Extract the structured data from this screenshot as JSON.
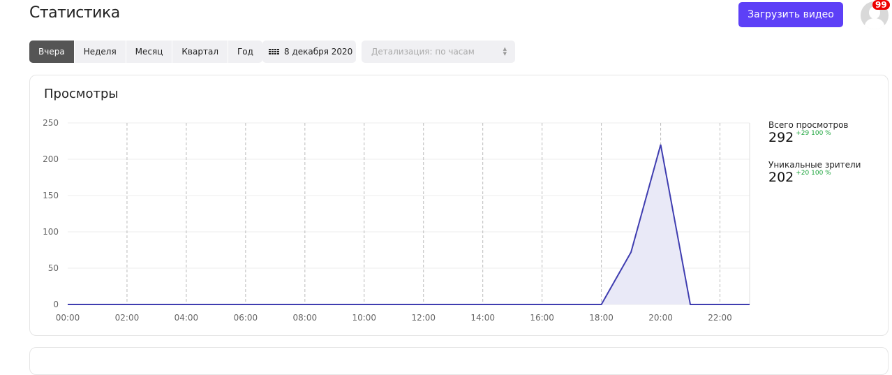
{
  "header": {
    "title": "Статистика",
    "upload_label": "Загрузить видео",
    "notifications": "99"
  },
  "periods": [
    {
      "label": "Вчера",
      "active": true
    },
    {
      "label": "Неделя"
    },
    {
      "label": "Месяц"
    },
    {
      "label": "Квартал"
    },
    {
      "label": "Год"
    }
  ],
  "date": "8 декабря 2020",
  "detail_placeholder": "Детализация: по часам",
  "views": {
    "title": "Просмотры",
    "stats": [
      {
        "label": "Всего просмотров",
        "value": "292",
        "delta": "+29 100 %"
      },
      {
        "label": "Уникальные зрители",
        "value": "202",
        "delta": "+20 100 %"
      }
    ]
  },
  "chart_data": {
    "type": "area",
    "x": [
      "00:00",
      "01:00",
      "02:00",
      "03:00",
      "04:00",
      "05:00",
      "06:00",
      "07:00",
      "08:00",
      "09:00",
      "10:00",
      "11:00",
      "12:00",
      "13:00",
      "14:00",
      "15:00",
      "16:00",
      "17:00",
      "18:00",
      "19:00",
      "20:00",
      "21:00",
      "22:00",
      "23:00"
    ],
    "values": [
      0,
      0,
      0,
      0,
      0,
      0,
      0,
      0,
      0,
      0,
      0,
      0,
      0,
      0,
      0,
      0,
      0,
      0,
      0,
      72,
      220,
      0,
      0,
      0
    ],
    "xticks": [
      "00:00",
      "02:00",
      "04:00",
      "06:00",
      "08:00",
      "10:00",
      "12:00",
      "14:00",
      "16:00",
      "18:00",
      "20:00",
      "22:00"
    ],
    "yticks": [
      "0",
      "50",
      "100",
      "150",
      "200",
      "250"
    ],
    "ylim": [
      0,
      250
    ],
    "grid": true,
    "color": "#3f3db0",
    "fill": "#e9e9f7"
  }
}
